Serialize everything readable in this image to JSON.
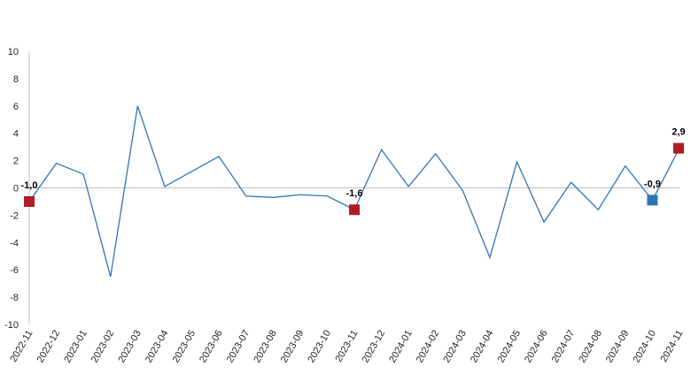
{
  "chart_data": {
    "type": "line",
    "categories": [
      "2022-11",
      "2022-12",
      "2023-01",
      "2023-02",
      "2023-03",
      "2023-04",
      "2023-05",
      "2023-06",
      "2023-07",
      "2023-08",
      "2023-09",
      "2023-10",
      "2023-11",
      "2023-12",
      "2024-01",
      "2024-02",
      "2024-03",
      "2024-04",
      "2024-05",
      "2024-06",
      "2024-07",
      "2024-08",
      "2024-09",
      "2024-10",
      "2024-11"
    ],
    "values": [
      -1.0,
      1.8,
      1.0,
      -6.5,
      6.0,
      0.1,
      1.2,
      2.3,
      -0.6,
      -0.7,
      -0.5,
      -0.6,
      -1.6,
      2.8,
      0.1,
      2.5,
      -0.2,
      -5.1,
      1.9,
      -2.5,
      0.4,
      -1.6,
      1.6,
      -0.9,
      2.9
    ],
    "ylim": [
      -10,
      10
    ],
    "yticks": [
      -10,
      -8,
      -6,
      -4,
      -2,
      0,
      2,
      4,
      6,
      8,
      10
    ],
    "ytick_labels": [
      "-10",
      "-8",
      "-6",
      "-4",
      "-2",
      "0",
      "2",
      "4",
      "6",
      "8",
      "10"
    ],
    "grid": false,
    "line_color": "#2e75b6",
    "highlights": [
      {
        "index": 0,
        "label": "-1,0",
        "color": "#b01c22"
      },
      {
        "index": 12,
        "label": "-1,6",
        "color": "#b01c22"
      },
      {
        "index": 23,
        "label": "-0,9",
        "color": "#2e75b6"
      },
      {
        "index": 24,
        "label": "2,9",
        "color": "#b01c22"
      }
    ]
  }
}
